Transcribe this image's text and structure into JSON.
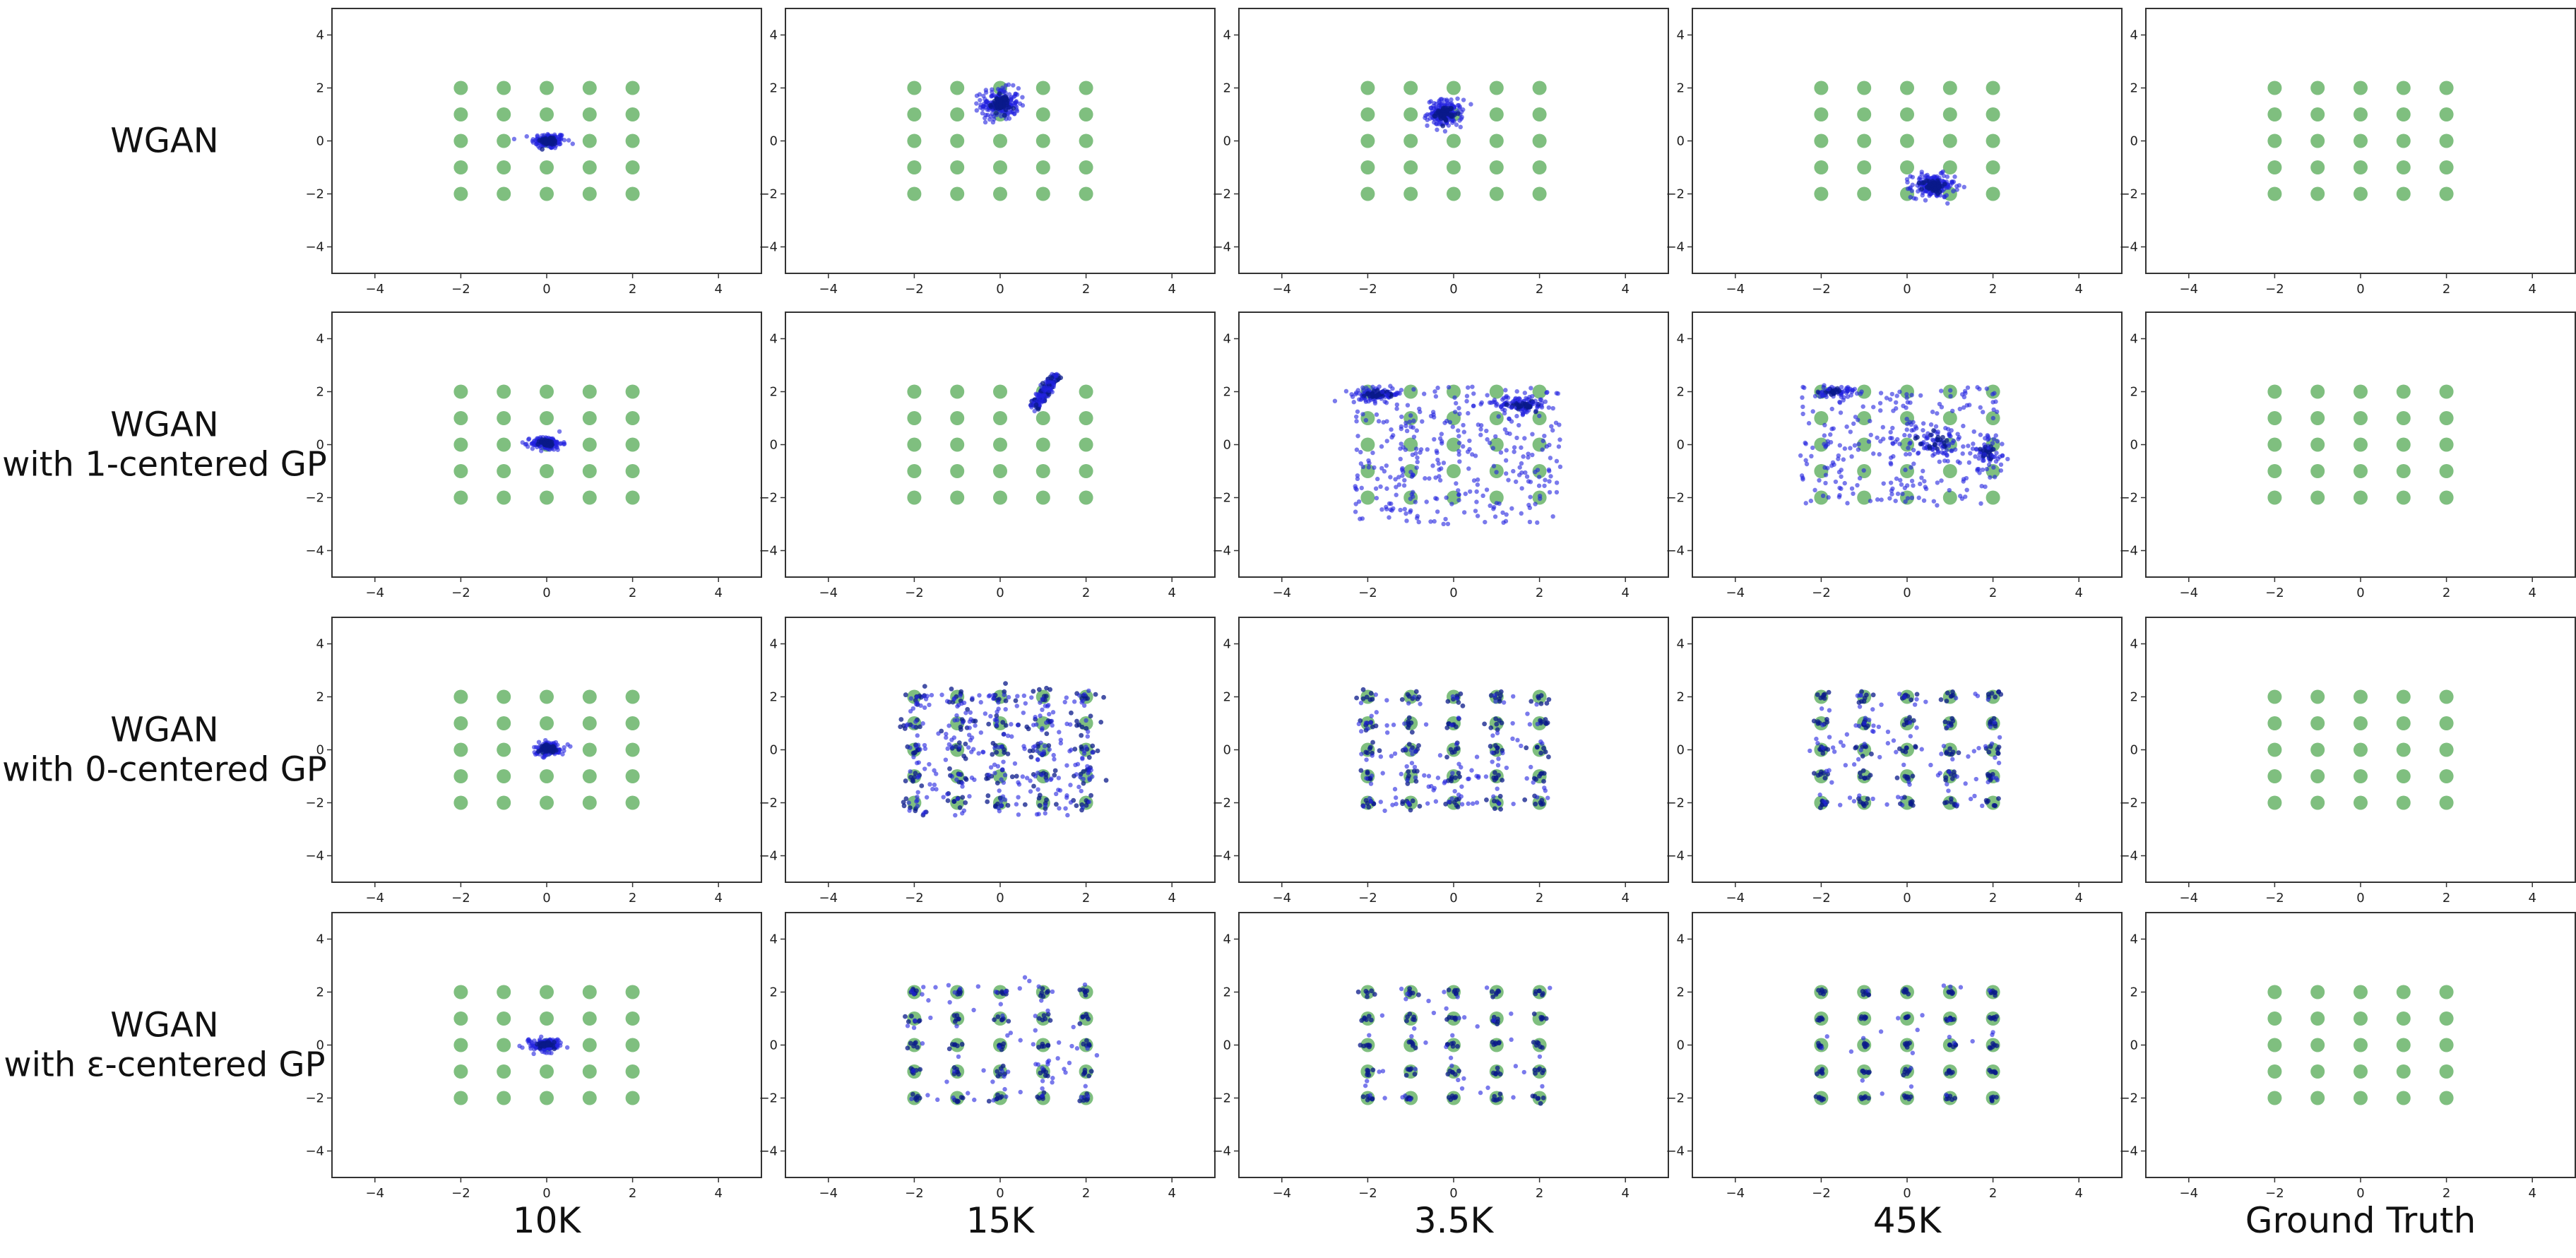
{
  "colors": {
    "ground_truth": "#7fbf7f",
    "generated": "#2222e0",
    "generated_dense": "#0a1a8a"
  },
  "row_labels": [
    [
      "WGAN"
    ],
    [
      "WGAN",
      "with 1-centered GP"
    ],
    [
      "WGAN",
      "with 0-centered GP"
    ],
    [
      "WGAN",
      "with ε-centered GP"
    ]
  ],
  "col_labels": [
    "10K",
    "15K",
    "3.5K",
    "45K",
    "Ground Truth"
  ],
  "chart_data": {
    "type": "scatter",
    "xlim": [
      -5,
      5
    ],
    "ylim": [
      -5,
      5
    ],
    "xticks": [
      -4,
      -2,
      0,
      2,
      4
    ],
    "yticks": [
      -4,
      -2,
      0,
      2,
      4
    ],
    "grid": false,
    "ground_truth_series": {
      "x": [
        -2,
        -1,
        0,
        1,
        2
      ],
      "y": [
        -2,
        -1,
        0,
        1,
        2
      ]
    },
    "panels": [
      [
        {
          "mode": "blob",
          "blobs": [
            {
              "x": 0.05,
              "y": 0.0,
              "sx": 0.2,
              "sy": 0.15,
              "n": 140
            }
          ]
        },
        {
          "mode": "blob",
          "blobs": [
            {
              "x": 0.0,
              "y": 1.4,
              "sx": 0.22,
              "sy": 0.3,
              "n": 180
            }
          ]
        },
        {
          "mode": "blob",
          "blobs": [
            {
              "x": -0.2,
              "y": 1.05,
              "sx": 0.2,
              "sy": 0.25,
              "n": 160
            }
          ]
        },
        {
          "mode": "blob",
          "blobs": [
            {
              "x": 0.6,
              "y": -1.7,
              "sx": 0.25,
              "sy": 0.22,
              "n": 180
            }
          ]
        },
        {
          "mode": "none"
        }
      ],
      [
        {
          "mode": "blob",
          "blobs": [
            {
              "x": 0.0,
              "y": 0.05,
              "sx": 0.18,
              "sy": 0.13,
              "n": 130
            }
          ]
        },
        {
          "mode": "line",
          "x1": 0.8,
          "y1": 1.4,
          "x2": 1.3,
          "y2": 2.6,
          "n": 160
        },
        {
          "mode": "mix",
          "blobs": [
            {
              "x": -1.8,
              "y": 1.9,
              "sx": 0.3,
              "sy": 0.12,
              "n": 90
            },
            {
              "x": 1.6,
              "y": 1.5,
              "sx": 0.3,
              "sy": 0.18,
              "n": 80
            }
          ],
          "scatter": {
            "xmin": -2.3,
            "xmax": 2.5,
            "ymin": -3.0,
            "ymax": 2.2,
            "n": 340
          }
        },
        {
          "mode": "mix",
          "blobs": [
            {
              "x": -1.7,
              "y": 2.0,
              "sx": 0.25,
              "sy": 0.1,
              "n": 50
            },
            {
              "x": 0.6,
              "y": 0.1,
              "sx": 0.4,
              "sy": 0.3,
              "n": 60
            },
            {
              "x": 1.9,
              "y": -0.3,
              "sx": 0.2,
              "sy": 0.4,
              "n": 50
            }
          ],
          "scatter": {
            "xmin": -2.5,
            "xmax": 2.1,
            "ymin": -2.3,
            "ymax": 2.2,
            "n": 260
          }
        },
        {
          "mode": "none"
        }
      ],
      [
        {
          "mode": "blob",
          "blobs": [
            {
              "x": 0.05,
              "y": 0.05,
              "sx": 0.18,
              "sy": 0.13,
              "n": 130
            }
          ]
        },
        {
          "mode": "grid",
          "per_mode": 8,
          "spread": 0.18,
          "scatter": {
            "xmin": -2.2,
            "xmax": 2.2,
            "ymin": -2.5,
            "ymax": 2.1,
            "n": 260
          }
        },
        {
          "mode": "grid",
          "per_mode": 7,
          "spread": 0.12,
          "scatter": {
            "xmin": -2.1,
            "xmax": 2.1,
            "ymin": -2.1,
            "ymax": 2.1,
            "n": 120
          }
        },
        {
          "mode": "grid",
          "per_mode": 7,
          "spread": 0.1,
          "scatter": {
            "xmin": -2.1,
            "xmax": 2.1,
            "ymin": -2.1,
            "ymax": 2.1,
            "n": 100
          }
        },
        {
          "mode": "none"
        }
      ],
      [
        {
          "mode": "blob",
          "blobs": [
            {
              "x": 0.0,
              "y": 0.0,
              "sx": 0.18,
              "sy": 0.12,
              "n": 130
            }
          ]
        },
        {
          "mode": "grid",
          "per_mode": 6,
          "spread": 0.08,
          "scatter": {
            "xmin": -2.1,
            "xmax": 2.1,
            "ymin": -2.1,
            "ymax": 2.6,
            "n": 80
          }
        },
        {
          "mode": "grid",
          "per_mode": 6,
          "spread": 0.07,
          "scatter": {
            "xmin": -2.1,
            "xmax": 2.1,
            "ymin": -2.1,
            "ymax": 2.3,
            "n": 45
          }
        },
        {
          "mode": "grid",
          "per_mode": 6,
          "spread": 0.05,
          "scatter": {
            "xmin": -2.1,
            "xmax": 2.1,
            "ymin": -2.1,
            "ymax": 2.4,
            "n": 25
          }
        },
        {
          "mode": "none"
        }
      ]
    ]
  }
}
